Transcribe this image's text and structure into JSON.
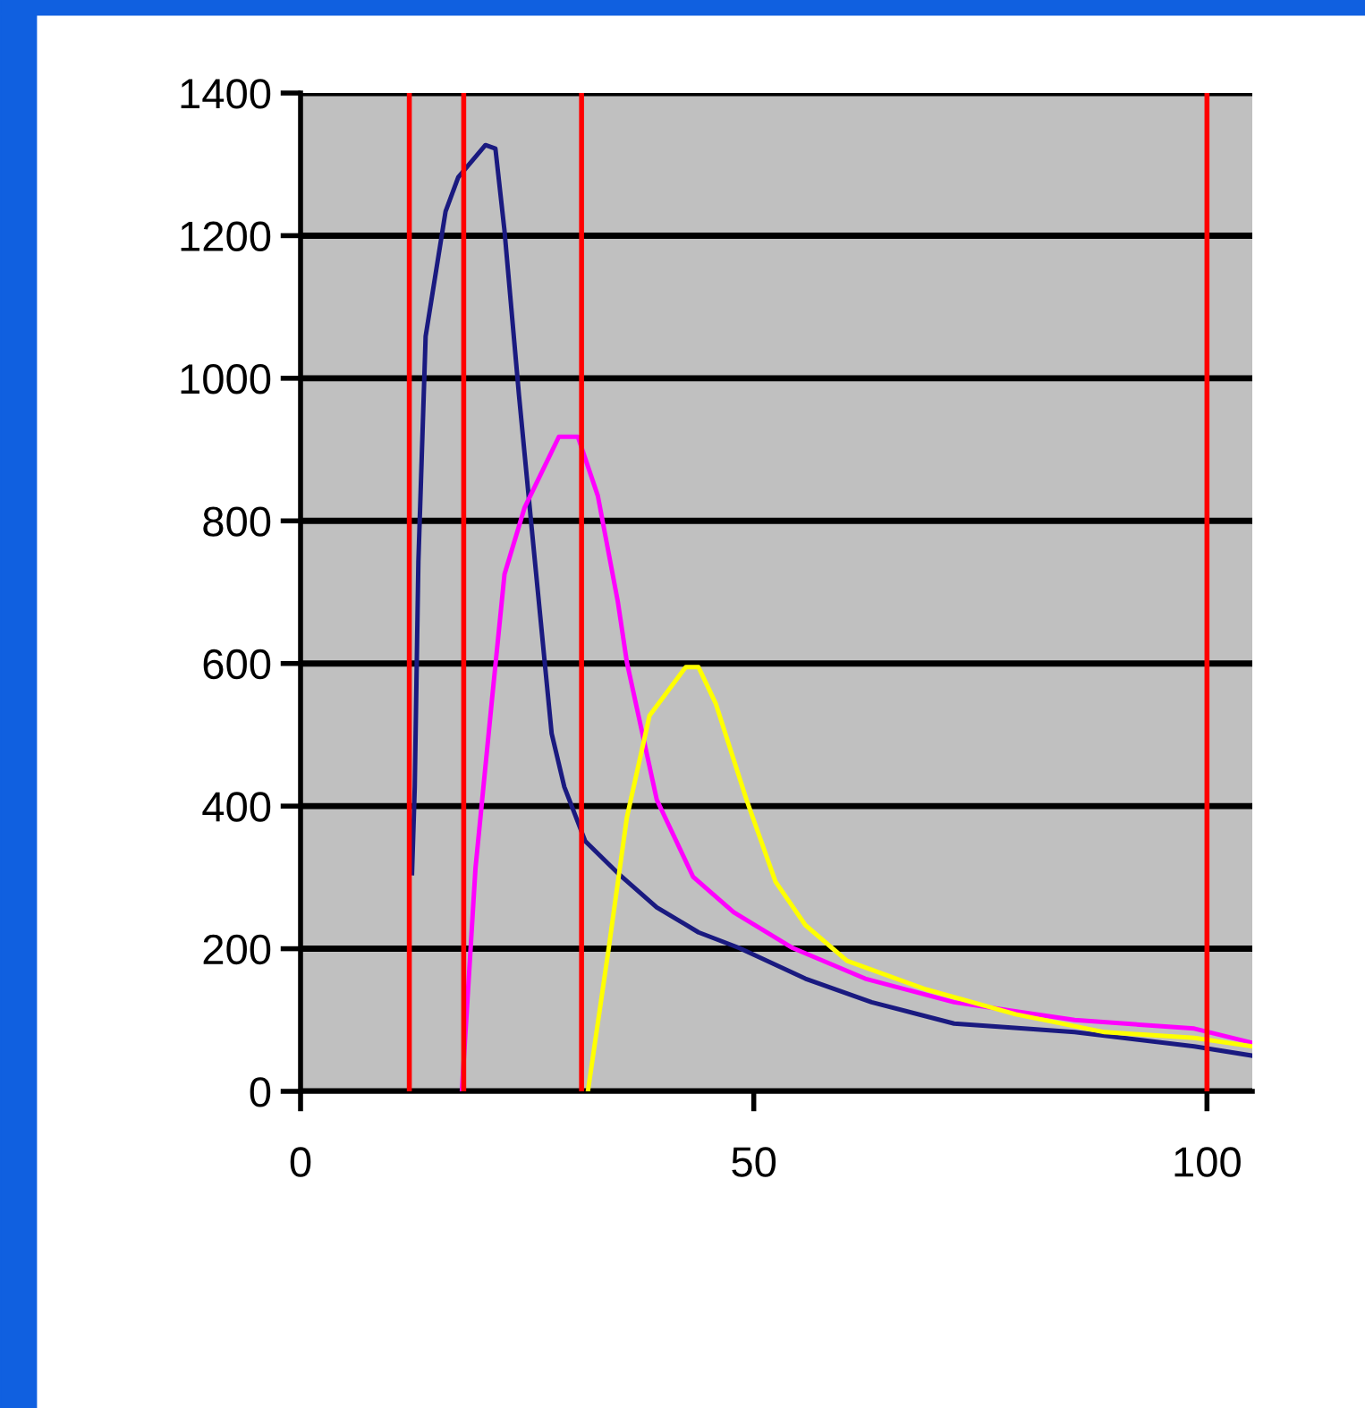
{
  "chart_data": {
    "type": "line",
    "series": [
      {
        "color": "#1a1a80",
        "x": [
          12.3,
          12.6,
          13.0,
          13.8,
          16.0,
          17.4,
          20.4,
          21.5,
          22.5,
          24.1,
          25.5,
          27.7,
          29.1,
          31.4,
          35.0,
          39.3,
          43.9,
          48.4,
          55.7,
          63.0,
          72.1,
          85.4,
          98.6,
          105
        ],
        "values": [
          306,
          427,
          743,
          1059,
          1234,
          1282,
          1327,
          1322,
          1207,
          976,
          790,
          502,
          427,
          351,
          306,
          258,
          223,
          201,
          158,
          125,
          95,
          83,
          63,
          50
        ]
      },
      {
        "color": "#ff00ff",
        "x": [
          17.8,
          19.3,
          21.1,
          22.5,
          24.7,
          28.5,
          30.6,
          32.8,
          35.0,
          36.0,
          39.3,
          43.3,
          47.8,
          54.3,
          62.3,
          72.1,
          85.4,
          98.6,
          105
        ],
        "values": [
          0,
          313,
          547,
          725,
          818,
          918,
          918,
          835,
          687,
          602,
          409,
          301,
          251,
          201,
          158,
          125,
          100,
          88,
          68
        ]
      },
      {
        "color": "#ffff00",
        "x": [
          31.7,
          34.0,
          36.0,
          38.5,
          42.5,
          43.9,
          45.8,
          49.2,
          52.4,
          55.7,
          60.3,
          69.0,
          78.9,
          88.7,
          98.6,
          105
        ],
        "values": [
          0,
          201,
          384,
          527,
          595,
          595,
          544,
          409,
          294,
          233,
          183,
          143,
          108,
          83,
          75,
          63
        ]
      }
    ],
    "xlim": [
      0,
      105
    ],
    "xticks": [
      0,
      50,
      100
    ],
    "ylim": [
      0,
      1400
    ],
    "yticks": [
      0,
      200,
      400,
      600,
      800,
      1000,
      1200,
      1400
    ],
    "grid": "y",
    "legend": false,
    "marker": "none",
    "line_style": "solid",
    "ref_lines": [
      {
        "axis": "x",
        "value": 12,
        "color": "#ff0000"
      },
      {
        "axis": "x",
        "value": 18,
        "color": "#ff0000"
      },
      {
        "axis": "x",
        "value": 31,
        "color": "#ff0000"
      },
      {
        "axis": "x",
        "value": 100,
        "color": "#ff0000"
      }
    ]
  }
}
